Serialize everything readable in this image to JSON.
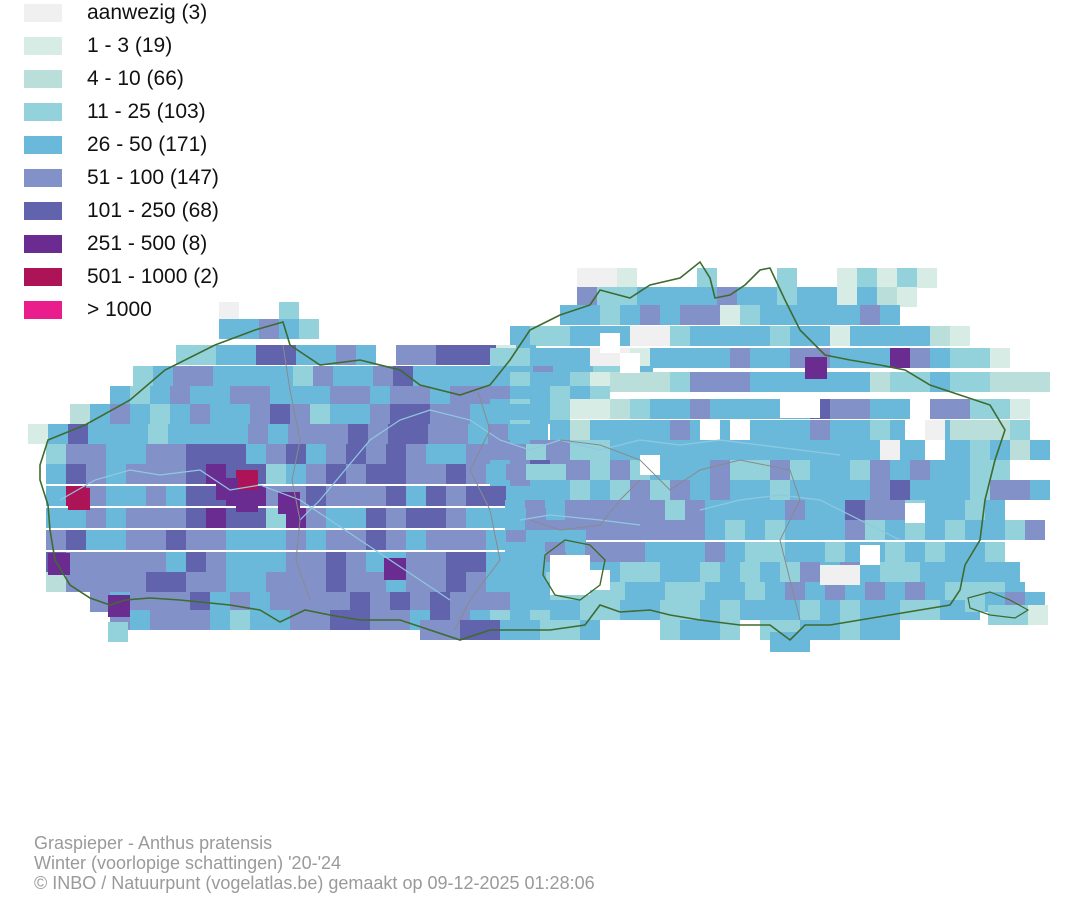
{
  "legend": [
    {
      "label": "aanwezig (3)",
      "color": "#f0f0f0"
    },
    {
      "label": "1 - 3 (19)",
      "color": "#d8ece6"
    },
    {
      "label": "4 - 10 (66)",
      "color": "#badfdb"
    },
    {
      "label": "11 - 25 (103)",
      "color": "#93d2db"
    },
    {
      "label": "26 - 50 (171)",
      "color": "#6ab9db"
    },
    {
      "label": "51 - 100 (147)",
      "color": "#8391c9"
    },
    {
      "label": "101 - 250 (68)",
      "color": "#6164ad"
    },
    {
      "label": "251 - 500 (8)",
      "color": "#6b2c92"
    },
    {
      "label": "501 - 1000 (2)",
      "color": "#ad1457"
    },
    {
      "label": "> 1000",
      "color": "#e91e8c"
    }
  ],
  "map": {
    "border_color": "#3e6b2f",
    "river_color": "#8fc8e0",
    "province_border_color": "#8a8a8a"
  },
  "credits": {
    "species": "Graspieper - Anthus pratensis",
    "period": "Winter (voorlopige schattingen) '20-'24",
    "source": "© INBO / Natuurpunt (vogelatlas.be) gemaakt op 09-12-2025 01:28:06"
  }
}
